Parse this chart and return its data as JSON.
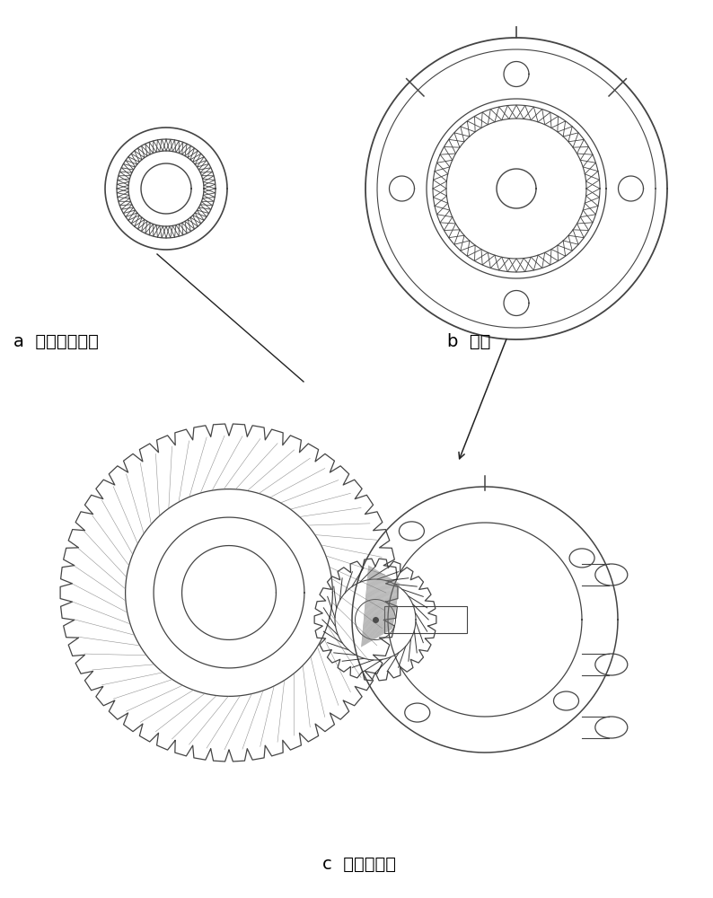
{
  "bg_color": "#ffffff",
  "line_color": "#444444",
  "dark_line": "#222222",
  "gray": "#777777",
  "light_gray": "#bbbbbb",
  "label_a": "a  关节输出齿轮",
  "label_b": "b  舵盘",
  "label_c": "c  组装示意图",
  "font_size": 14,
  "fig_width": 7.94,
  "fig_height": 10.0
}
